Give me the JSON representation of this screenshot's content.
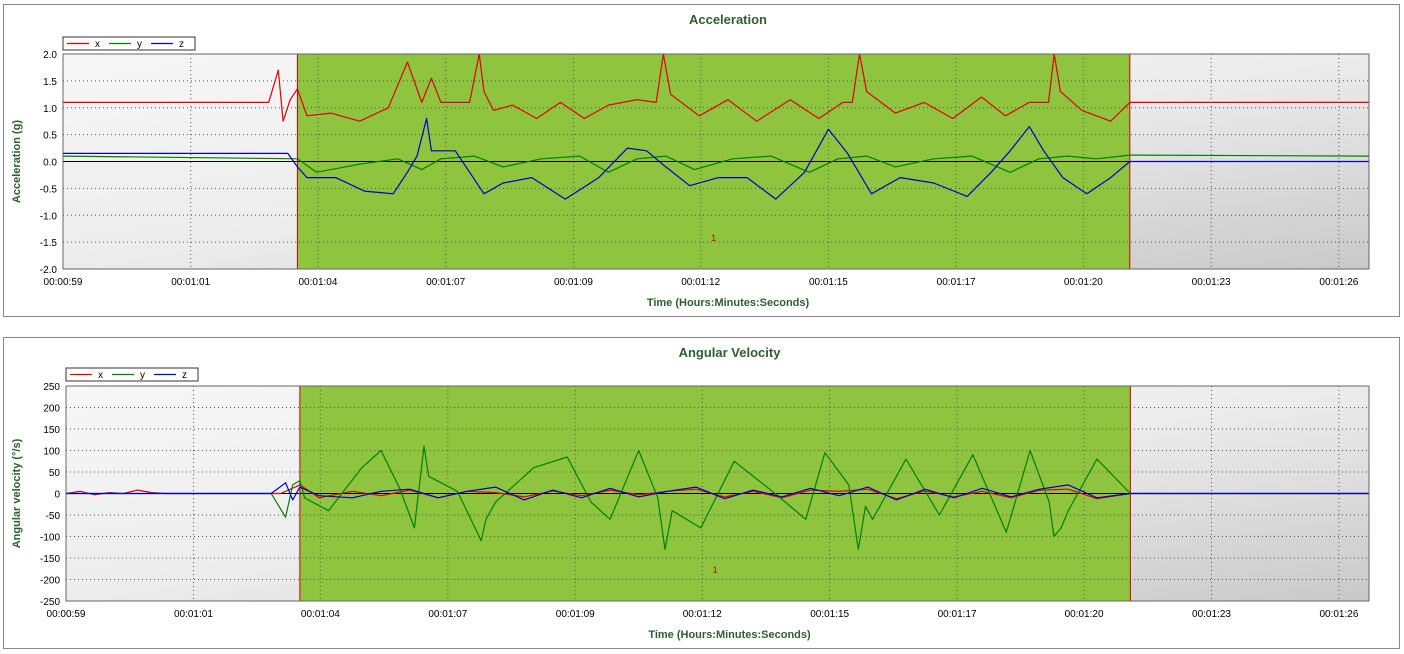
{
  "chart_data": [
    {
      "type": "line",
      "title": "Acceleration",
      "xlabel": "Time (Hours:Minutes:Seconds)",
      "ylabel": "Acceleration (g)",
      "xlim": [
        59,
        86.3
      ],
      "ylim": [
        -2.0,
        2.0
      ],
      "xticks": [
        {
          "value": 59,
          "label": "00:00:59"
        },
        {
          "value": 61.67,
          "label": "00:01:01"
        },
        {
          "value": 64.33,
          "label": "00:01:04"
        },
        {
          "value": 67,
          "label": "00:01:07"
        },
        {
          "value": 69.67,
          "label": "00:01:09"
        },
        {
          "value": 72.33,
          "label": "00:01:12"
        },
        {
          "value": 75,
          "label": "00:01:15"
        },
        {
          "value": 77.67,
          "label": "00:01:17"
        },
        {
          "value": 80.33,
          "label": "00:01:20"
        },
        {
          "value": 83,
          "label": "00:01:23"
        },
        {
          "value": 85.67,
          "label": "00:01:26"
        }
      ],
      "yticks": [
        {
          "value": 2.0,
          "label": "2.0"
        },
        {
          "value": 1.5,
          "label": "1.5"
        },
        {
          "value": 1.0,
          "label": "1.0"
        },
        {
          "value": 0.5,
          "label": "0.5"
        },
        {
          "value": 0.0,
          "label": "0.0"
        },
        {
          "value": -0.5,
          "label": "-0.5"
        },
        {
          "value": -1.0,
          "label": "-1.0"
        },
        {
          "value": -1.5,
          "label": "-1.5"
        },
        {
          "value": -2.0,
          "label": "-2.0"
        }
      ],
      "grid": true,
      "legend_position": "top-left",
      "highlight_region": {
        "x_start": 63.9,
        "x_end": 81.3,
        "label": "1",
        "color": "#8fc43e"
      },
      "series": [
        {
          "name": "x",
          "color": "#e00000",
          "x": [
            59,
            63.3,
            63.5,
            63.6,
            63.75,
            63.9,
            64.1,
            64.6,
            65.2,
            65.8,
            66.2,
            66.5,
            66.7,
            66.9,
            67.5,
            67.7,
            67.8,
            68.0,
            68.4,
            68.9,
            69.4,
            69.9,
            70.4,
            71.0,
            71.4,
            71.55,
            71.7,
            72.3,
            72.9,
            73.5,
            74.2,
            74.8,
            75.3,
            75.5,
            75.65,
            75.8,
            76.4,
            77.0,
            77.6,
            78.2,
            78.7,
            79.2,
            79.6,
            79.72,
            79.85,
            80.3,
            80.9,
            81.3,
            86.3
          ],
          "y": [
            1.1,
            1.1,
            1.7,
            0.75,
            1.15,
            1.35,
            0.85,
            0.9,
            0.75,
            1.0,
            1.85,
            1.1,
            1.55,
            1.1,
            1.1,
            2.0,
            1.3,
            0.95,
            1.05,
            0.8,
            1.1,
            0.8,
            1.05,
            1.15,
            1.1,
            2.0,
            1.25,
            0.85,
            1.15,
            0.75,
            1.15,
            0.8,
            1.1,
            1.1,
            2.0,
            1.3,
            0.9,
            1.1,
            0.8,
            1.2,
            0.85,
            1.1,
            1.1,
            2.0,
            1.3,
            0.95,
            0.75,
            1.1,
            1.1
          ]
        },
        {
          "name": "y",
          "color": "#008000",
          "x": [
            59,
            63.9,
            64.3,
            65.2,
            66.0,
            66.5,
            66.9,
            67.6,
            68.2,
            69.0,
            69.8,
            70.4,
            71.0,
            71.6,
            72.2,
            73.0,
            73.8,
            74.6,
            75.2,
            75.8,
            76.4,
            77.2,
            78.0,
            78.8,
            79.4,
            80.0,
            80.6,
            81.3,
            86.3
          ],
          "y": [
            0.1,
            0.05,
            -0.2,
            -0.05,
            0.05,
            -0.15,
            0.05,
            0.1,
            -0.1,
            0.05,
            0.1,
            -0.2,
            0.05,
            0.1,
            -0.15,
            0.05,
            0.1,
            -0.2,
            0.05,
            0.1,
            -0.1,
            0.05,
            0.1,
            -0.2,
            0.05,
            0.1,
            0.05,
            0.12,
            0.1
          ]
        },
        {
          "name": "z",
          "color": "#0000cc",
          "x": [
            59,
            63.7,
            63.9,
            64.1,
            64.7,
            65.3,
            65.9,
            66.2,
            66.4,
            66.6,
            66.7,
            67.2,
            67.8,
            68.2,
            68.8,
            69.5,
            70.2,
            70.8,
            71.2,
            71.6,
            72.1,
            72.7,
            73.3,
            73.9,
            74.5,
            75.0,
            75.4,
            75.9,
            76.5,
            77.2,
            77.9,
            78.4,
            78.8,
            79.2,
            79.5,
            79.9,
            80.4,
            80.9,
            81.3,
            86.3
          ],
          "y": [
            0.15,
            0.15,
            -0.1,
            -0.3,
            -0.3,
            -0.55,
            -0.6,
            -0.2,
            0.1,
            0.8,
            0.2,
            0.2,
            -0.6,
            -0.4,
            -0.3,
            -0.7,
            -0.3,
            0.25,
            0.2,
            -0.1,
            -0.45,
            -0.3,
            -0.3,
            -0.7,
            -0.2,
            0.6,
            0.15,
            -0.6,
            -0.3,
            -0.4,
            -0.65,
            -0.2,
            0.2,
            0.65,
            0.2,
            -0.3,
            -0.6,
            -0.3,
            0.0,
            0.0
          ]
        }
      ]
    },
    {
      "type": "line",
      "title": "Angular Velocity",
      "xlabel": "Time (Hours:Minutes:Seconds)",
      "ylabel": "Angular velocity (°/s)",
      "xlim": [
        59,
        86.3
      ],
      "ylim": [
        -250,
        250
      ],
      "xticks": [
        {
          "value": 59,
          "label": "00:00:59"
        },
        {
          "value": 61.67,
          "label": "00:01:01"
        },
        {
          "value": 64.33,
          "label": "00:01:04"
        },
        {
          "value": 67,
          "label": "00:01:07"
        },
        {
          "value": 69.67,
          "label": "00:01:09"
        },
        {
          "value": 72.33,
          "label": "00:01:12"
        },
        {
          "value": 75,
          "label": "00:01:15"
        },
        {
          "value": 77.67,
          "label": "00:01:17"
        },
        {
          "value": 80.33,
          "label": "00:01:20"
        },
        {
          "value": 83,
          "label": "00:01:23"
        },
        {
          "value": 85.67,
          "label": "00:01:26"
        }
      ],
      "yticks": [
        {
          "value": 250,
          "label": "250"
        },
        {
          "value": 200,
          "label": "200"
        },
        {
          "value": 150,
          "label": "150"
        },
        {
          "value": 100,
          "label": "100"
        },
        {
          "value": 50,
          "label": "50"
        },
        {
          "value": 0,
          "label": "0"
        },
        {
          "value": -50,
          "label": "-50"
        },
        {
          "value": -100,
          "label": "-100"
        },
        {
          "value": -150,
          "label": "-150"
        },
        {
          "value": -200,
          "label": "-200"
        },
        {
          "value": -250,
          "label": "-250"
        }
      ],
      "grid": true,
      "legend_position": "top-left",
      "highlight_region": {
        "x_start": 63.9,
        "x_end": 81.3,
        "label": "1",
        "color": "#8fc43e"
      },
      "series": [
        {
          "name": "x",
          "color": "#e00000",
          "x": [
            59,
            59.3,
            59.6,
            59.9,
            60.2,
            60.5,
            60.8,
            61.1,
            61.4,
            63.5,
            63.9,
            64.3,
            65.0,
            65.6,
            66.2,
            66.8,
            67.4,
            68.0,
            68.6,
            69.2,
            69.8,
            70.4,
            71.0,
            71.6,
            72.2,
            72.8,
            73.4,
            74.0,
            74.6,
            75.2,
            75.8,
            76.4,
            77.0,
            77.6,
            78.2,
            78.8,
            79.4,
            80.0,
            80.6,
            81.3,
            86.3
          ],
          "y": [
            0,
            5,
            -3,
            2,
            0,
            8,
            2,
            0,
            0,
            0,
            20,
            -10,
            5,
            -5,
            8,
            -10,
            5,
            2,
            -8,
            6,
            -5,
            8,
            -3,
            5,
            10,
            -8,
            5,
            -10,
            8,
            5,
            10,
            -12,
            6,
            -8,
            5,
            -10,
            8,
            10,
            -12,
            0,
            0
          ]
        },
        {
          "name": "y",
          "color": "#008000",
          "x": [
            59,
            63.3,
            63.6,
            63.75,
            63.9,
            64.0,
            64.5,
            65.2,
            65.6,
            66.0,
            66.2,
            66.3,
            66.5,
            66.6,
            67.2,
            67.7,
            67.8,
            68.0,
            68.8,
            69.5,
            70.0,
            70.4,
            71.0,
            71.4,
            71.55,
            71.7,
            72.3,
            73.0,
            73.8,
            74.5,
            74.9,
            75.4,
            75.6,
            75.75,
            75.9,
            76.6,
            77.3,
            78.0,
            78.7,
            79.2,
            79.6,
            79.7,
            79.85,
            80.0,
            80.6,
            81.3,
            86.3
          ],
          "y": [
            0,
            0,
            -55,
            20,
            30,
            -10,
            -40,
            60,
            100,
            10,
            -50,
            -80,
            110,
            40,
            5,
            -110,
            -60,
            -20,
            60,
            85,
            -20,
            -60,
            100,
            -10,
            -130,
            -40,
            -80,
            75,
            5,
            -60,
            95,
            20,
            -130,
            -30,
            -60,
            80,
            -50,
            90,
            -90,
            100,
            -20,
            -100,
            -80,
            -40,
            80,
            0,
            0
          ]
        },
        {
          "name": "z",
          "color": "#0000cc",
          "x": [
            59,
            63.3,
            63.6,
            63.75,
            63.9,
            64.3,
            65.0,
            65.6,
            66.2,
            66.8,
            67.4,
            68.0,
            68.6,
            69.2,
            69.8,
            70.4,
            71.0,
            71.6,
            72.2,
            72.8,
            73.4,
            74.0,
            74.6,
            75.2,
            75.8,
            76.4,
            77.0,
            77.6,
            78.2,
            78.8,
            79.4,
            80.0,
            80.6,
            81.3,
            86.3
          ],
          "y": [
            0,
            0,
            25,
            -15,
            15,
            -5,
            -10,
            5,
            10,
            -10,
            5,
            15,
            -15,
            8,
            -10,
            12,
            -8,
            5,
            15,
            -12,
            8,
            -8,
            12,
            -5,
            15,
            -15,
            10,
            -10,
            12,
            -8,
            10,
            20,
            -10,
            0,
            0
          ]
        }
      ]
    }
  ]
}
